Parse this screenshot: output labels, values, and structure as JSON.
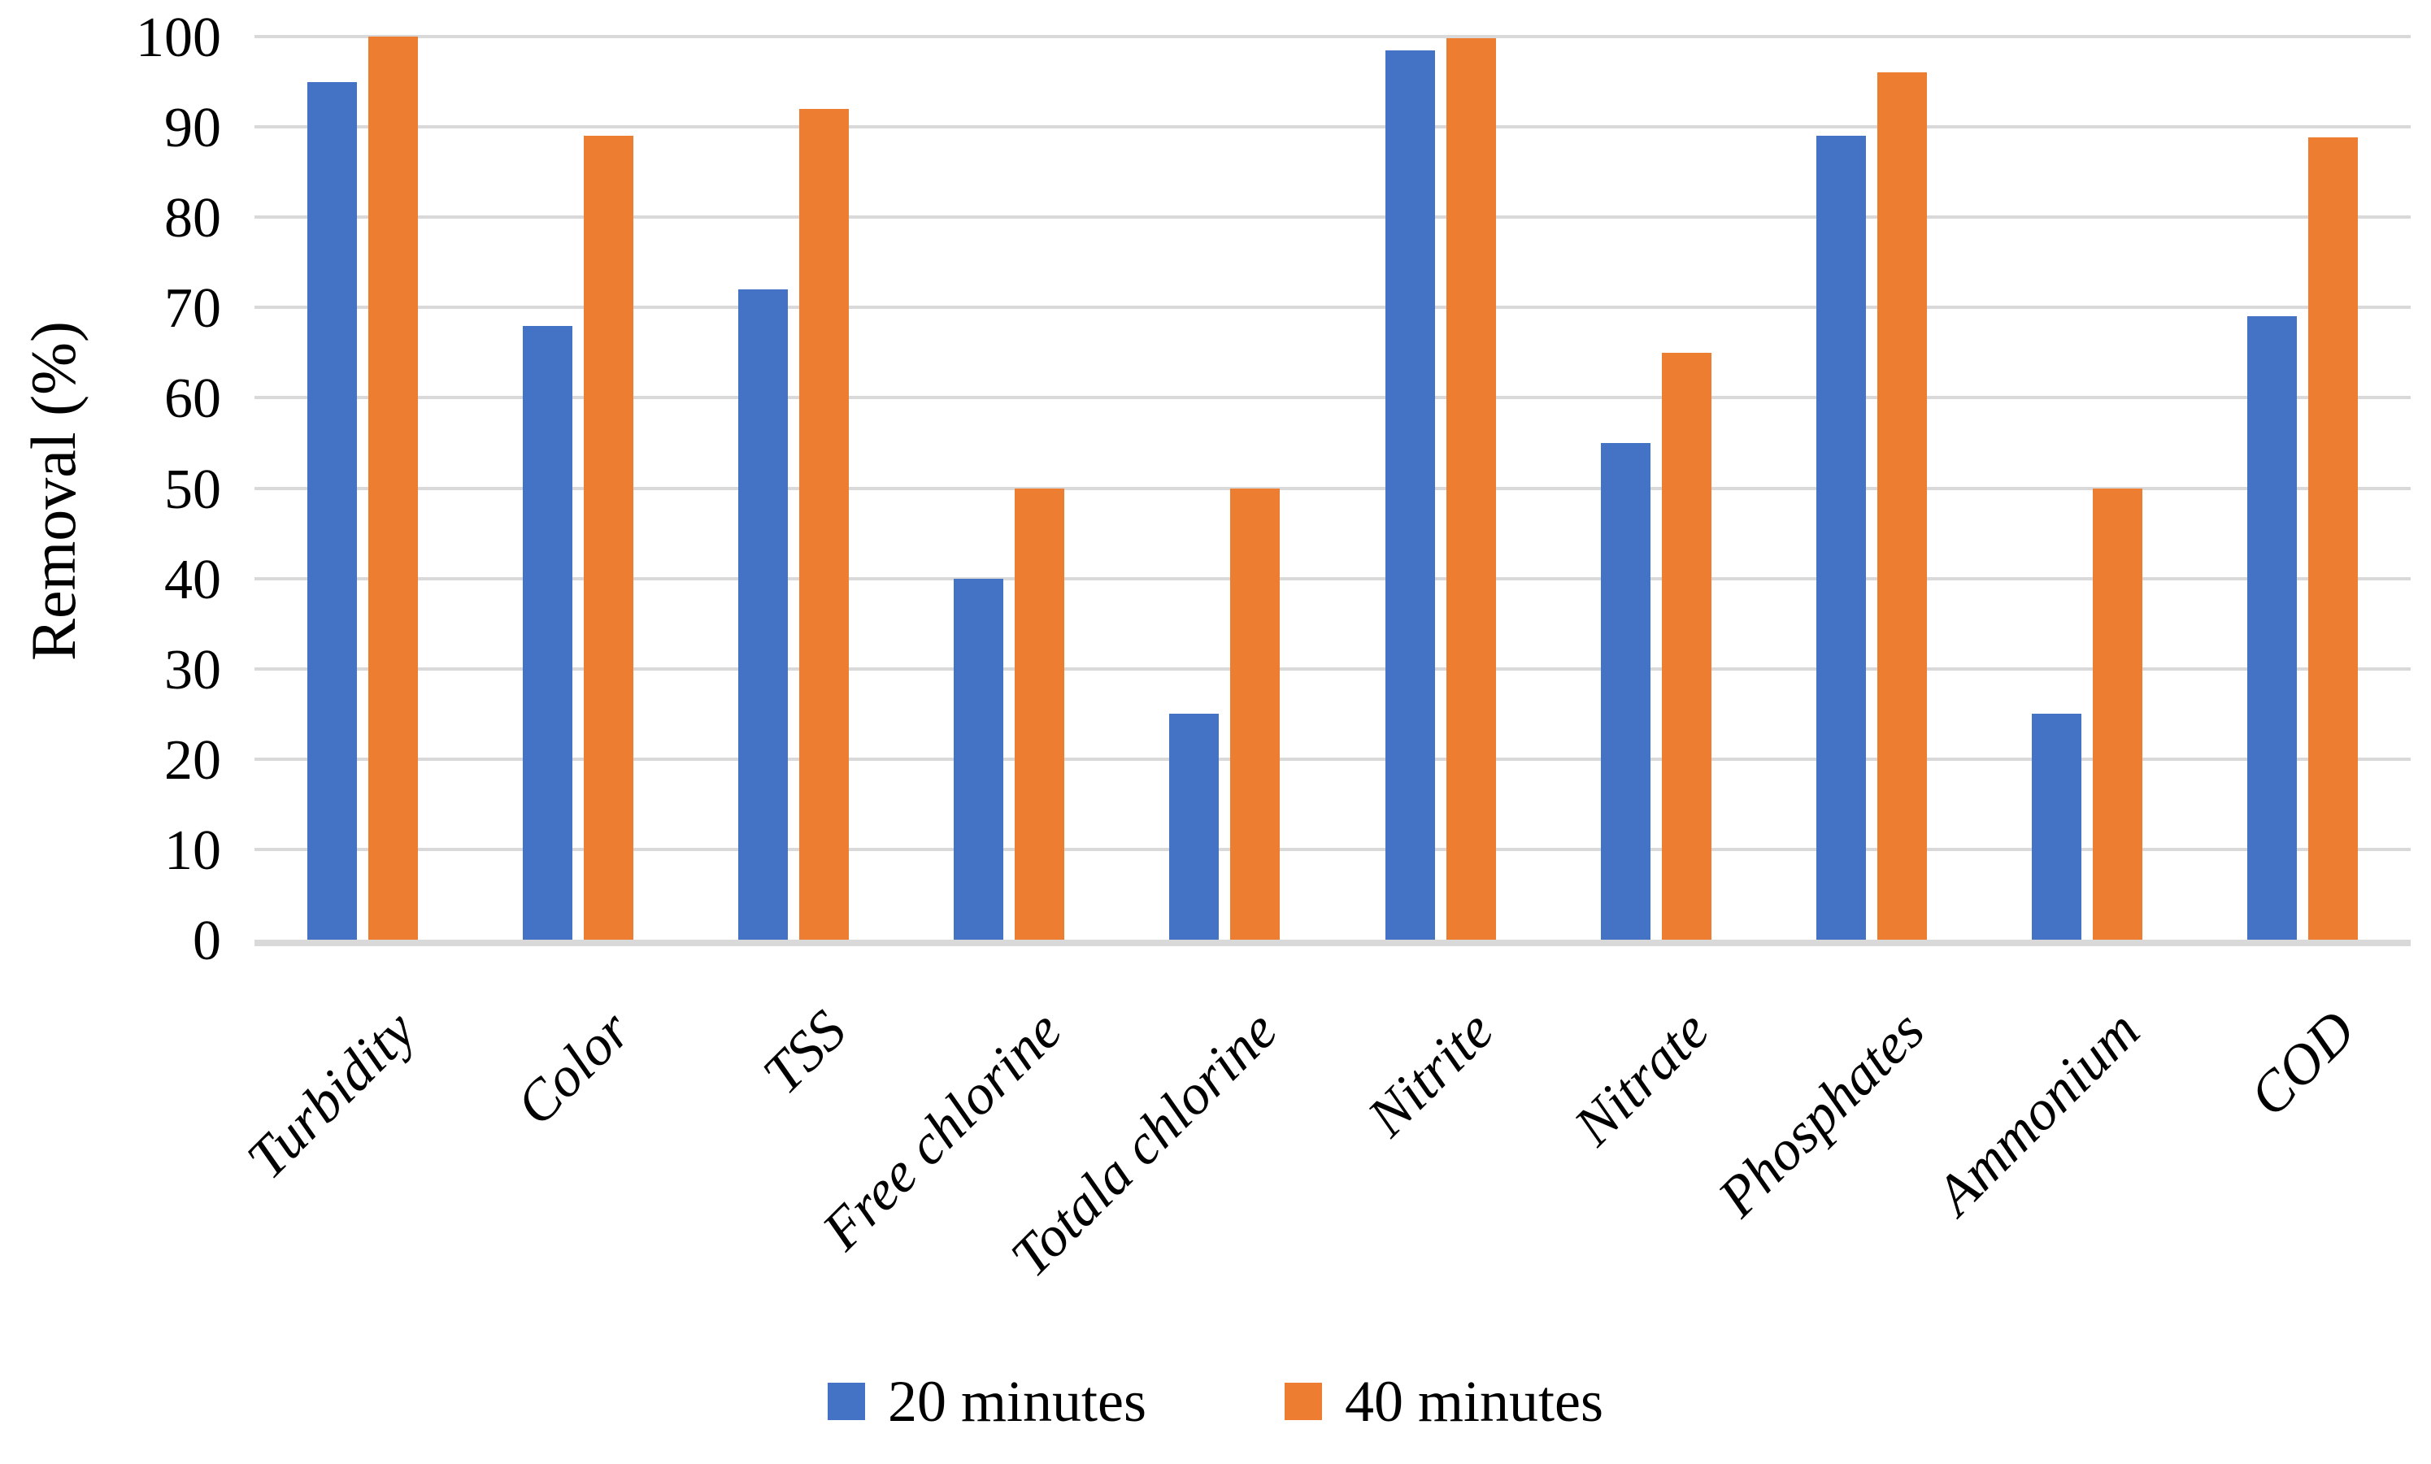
{
  "figure": {
    "background": "#FFFFFF"
  },
  "chart_data": {
    "type": "bar",
    "title": "",
    "xlabel": "",
    "ylabel": "Removal (%)",
    "ylim": [
      0,
      100
    ],
    "yticks": [
      0,
      10,
      20,
      30,
      40,
      50,
      60,
      70,
      80,
      90,
      100
    ],
    "grid": true,
    "legend_position": "bottom",
    "categories": [
      "Turbidity",
      "Color",
      "TSS",
      "Free chlorine",
      "Totala chlorine",
      "Nitrite",
      "Nitrate",
      "Phosphates",
      "Ammonium",
      "COD"
    ],
    "series": [
      {
        "name": "20 minutes",
        "color": "#4472C4",
        "values": [
          95,
          68,
          72,
          40,
          25,
          98.5,
          55,
          89,
          25,
          69
        ]
      },
      {
        "name": "40 minutes",
        "color": "#ED7D31",
        "values": [
          100,
          89,
          92,
          50,
          50,
          99.8,
          65,
          96,
          50,
          88.8
        ]
      }
    ],
    "colors": {
      "gridline": "#D9D9D9",
      "axis_line": "#D9D9D9",
      "text": "#000000"
    }
  }
}
